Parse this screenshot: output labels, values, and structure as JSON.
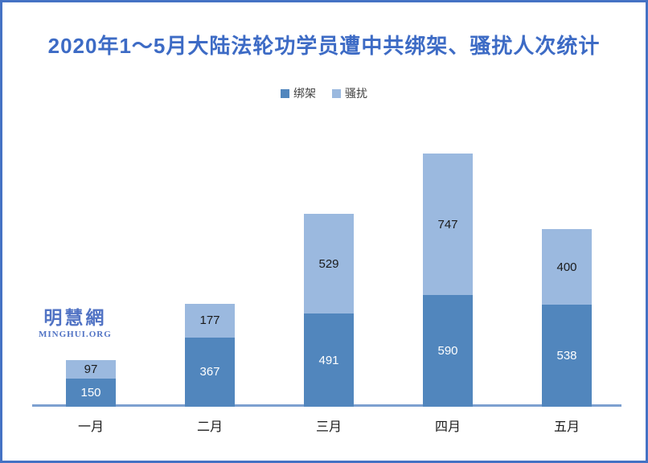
{
  "frame": {
    "border_color": "#4472C4",
    "background_color": "#FFFFFF"
  },
  "watermark": {
    "cjk": "明慧網",
    "latin": "MINGHUI.ORG",
    "color": "#5173C4"
  },
  "chart_data": {
    "type": "bar",
    "stacked": true,
    "title": "2020年1～5月大陆法轮功学员遭中共绑架、骚扰人次统计",
    "title_color": "#3D6BC5",
    "categories": [
      "一月",
      "二月",
      "三月",
      "四月",
      "五月"
    ],
    "series": [
      {
        "name": "绑架",
        "values": [
          150,
          367,
          491,
          590,
          538
        ],
        "color": "#5186BD",
        "value_label_color": "#FFFFFF"
      },
      {
        "name": "骚扰",
        "values": [
          97,
          177,
          529,
          747,
          400
        ],
        "color": "#9BB9DF",
        "value_label_color": "#1A1A1A"
      }
    ],
    "totals": [
      247,
      544,
      1020,
      1337,
      938
    ],
    "data_labels_visible": true,
    "legend_position": "top-center",
    "legend_text_color": "#404040",
    "grid": false,
    "y_axis_visible": false,
    "x_axis_line_color": "#7DA0D0",
    "x_axis_label_color": "#1A1A1A"
  }
}
